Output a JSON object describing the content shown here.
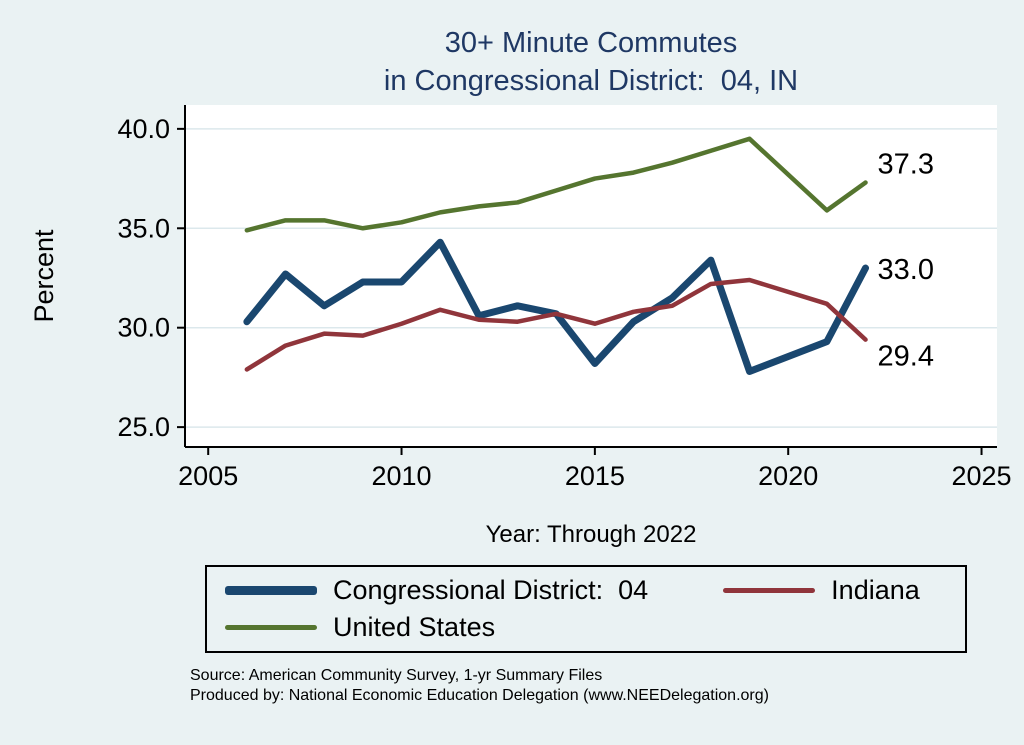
{
  "title": {
    "line1": "30+ Minute Commutes",
    "line2": "in Congressional District:  04, IN"
  },
  "axes": {
    "ylabel": "Percent",
    "xlabel": "Year: Through 2022"
  },
  "chart_data": {
    "type": "line",
    "title": "30+ Minute Commutes in Congressional District: 04, IN",
    "x": [
      2006,
      2007,
      2008,
      2009,
      2010,
      2011,
      2012,
      2013,
      2014,
      2015,
      2016,
      2017,
      2018,
      2019,
      2021,
      2022
    ],
    "series": [
      {
        "name": "Congressional District:  04",
        "color": "#1a476f",
        "stroke_width": 7,
        "end_label": "33.0",
        "values": [
          30.3,
          32.7,
          31.1,
          32.3,
          32.3,
          34.3,
          30.6,
          31.1,
          30.7,
          28.2,
          30.3,
          31.5,
          33.4,
          27.8,
          29.3,
          33.0
        ]
      },
      {
        "name": "Indiana",
        "color": "#90353b",
        "stroke_width": 4.5,
        "end_label": "29.4",
        "values": [
          27.9,
          29.1,
          29.7,
          29.6,
          30.2,
          30.9,
          30.4,
          30.3,
          30.7,
          30.2,
          30.8,
          31.1,
          32.2,
          32.4,
          31.2,
          29.4
        ]
      },
      {
        "name": "United States",
        "color": "#55752f",
        "stroke_width": 4.5,
        "end_label": "37.3",
        "values": [
          34.9,
          35.4,
          35.4,
          35.0,
          35.3,
          35.8,
          36.1,
          36.3,
          36.9,
          37.5,
          37.8,
          38.3,
          38.9,
          39.5,
          35.9,
          37.3
        ]
      }
    ],
    "xticks": [
      2005,
      2010,
      2015,
      2020,
      2025
    ],
    "yticks": [
      25,
      30,
      35,
      40
    ],
    "ytick_labels": [
      "25.0",
      "30.0",
      "35.0",
      "40.0"
    ],
    "xlim": [
      2004.4,
      2025.4
    ],
    "ylim": [
      24.0,
      41.2
    ],
    "grid": "horizontal",
    "legend_position": "bottom"
  },
  "footer": {
    "source": "Source: American Community Survey, 1-yr Summary Files",
    "produced_by": "Produced by: National Economic Education Delegation (www.NEEDelegation.org)"
  },
  "colors": {
    "background": "#eaf2f3",
    "plot_background": "#ffffff",
    "grid": "#dce8ec",
    "axis": "#000000",
    "title": "#1f3864"
  }
}
